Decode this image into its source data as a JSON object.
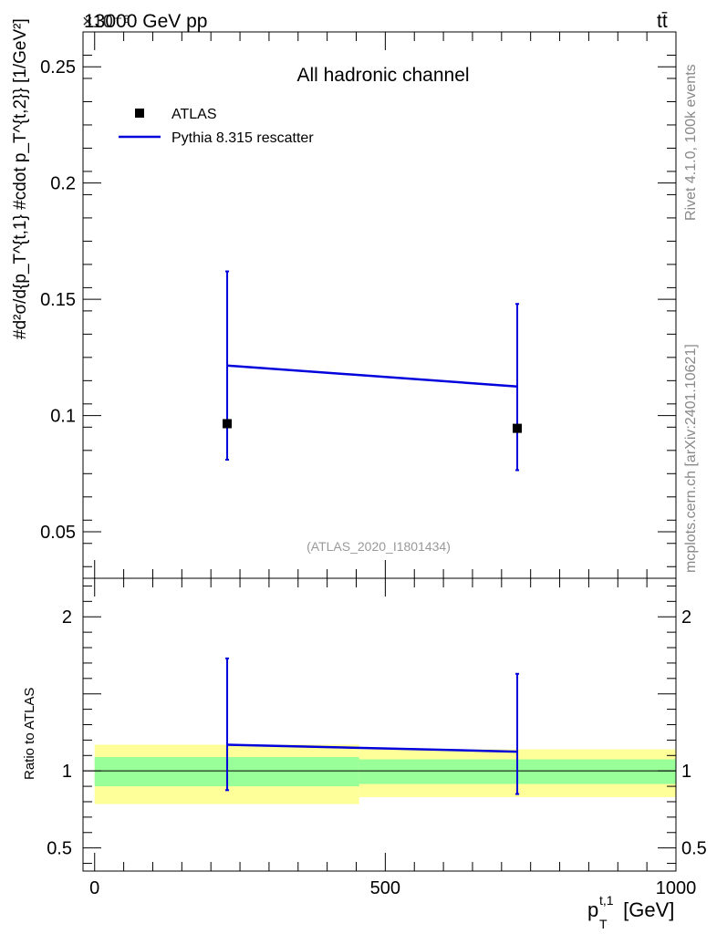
{
  "header": {
    "energy_label": "13000 GeV pp",
    "process_label": "tt̄",
    "exponent_label": "×10⁻⁶"
  },
  "side_text": {
    "rivet": "Rivet 4.1.0,  100k events",
    "mcplots": "mcplots.cern.ch [arXiv:2401.10621]"
  },
  "chart_data": [
    {
      "type": "line",
      "title": "All hadronic channel",
      "analysis_tag": "(ATLAS_2020_I1801434)",
      "ylabel": "#d²σ/d{p_T^{t,1} #cdot p_T^{t,2}} [1/GeV²]",
      "xlim": [
        -20,
        1000
      ],
      "ylim": [
        0.03,
        0.265
      ],
      "yticks": [
        0.05,
        0.1,
        0.15,
        0.2,
        0.25
      ],
      "ytick_labels": [
        "0.05",
        "0.1",
        "0.15",
        "0.2",
        "0.25"
      ],
      "legend": {
        "placement": "top-left",
        "entries": [
          "ATLAS",
          "Pythia 8.315 rescatter"
        ]
      },
      "series": [
        {
          "name": "ATLAS",
          "kind": "points",
          "color": "#000000",
          "x": [
            228,
            727
          ],
          "values": [
            0.0965,
            0.0945
          ]
        },
        {
          "name": "Pythia 8.315 rescatter",
          "kind": "line",
          "color": "#0000dd",
          "x": [
            228,
            727
          ],
          "values": [
            0.1215,
            0.1125
          ],
          "err_low": [
            0.081,
            0.0765
          ],
          "err_high": [
            0.162,
            0.148
          ]
        }
      ]
    },
    {
      "type": "line",
      "ylabel": "Ratio to ATLAS",
      "xlabel": "p_T^{t,1} [GeV]",
      "xlim": [
        -20,
        1000
      ],
      "ylim": [
        0.35,
        2.25
      ],
      "xticks": [
        0,
        500,
        1000
      ],
      "xtick_labels": [
        "0",
        "500",
        "1000"
      ],
      "yticks": [
        0.5,
        1,
        2
      ],
      "ytick_labels": [
        "0.5",
        "1",
        "2"
      ],
      "bands": [
        {
          "name": "ATLAS total uncertainty",
          "color": "#ffff99",
          "bins": [
            [
              0,
              455,
              0.785,
              1.17
            ],
            [
              455,
              1000,
              0.83,
              1.14
            ]
          ]
        },
        {
          "name": "ATLAS statistical uncertainty",
          "color": "#99ff99",
          "bins": [
            [
              0,
              455,
              0.9,
              1.09
            ],
            [
              455,
              1000,
              0.915,
              1.075
            ]
          ]
        }
      ],
      "series": [
        {
          "name": "Pythia 8.315 rescatter / ATLAS",
          "color": "#0000dd",
          "x": [
            228,
            727
          ],
          "values": [
            1.17,
            1.125
          ],
          "err_low": [
            0.875,
            0.85
          ],
          "err_high": [
            1.73,
            1.63
          ]
        }
      ]
    }
  ],
  "axis_titles": {
    "x": "p",
    "x_sub": "T",
    "x_sup": "t,1",
    "x_unit": " [GeV]",
    "ratio_y": "Ratio to ATLAS"
  }
}
